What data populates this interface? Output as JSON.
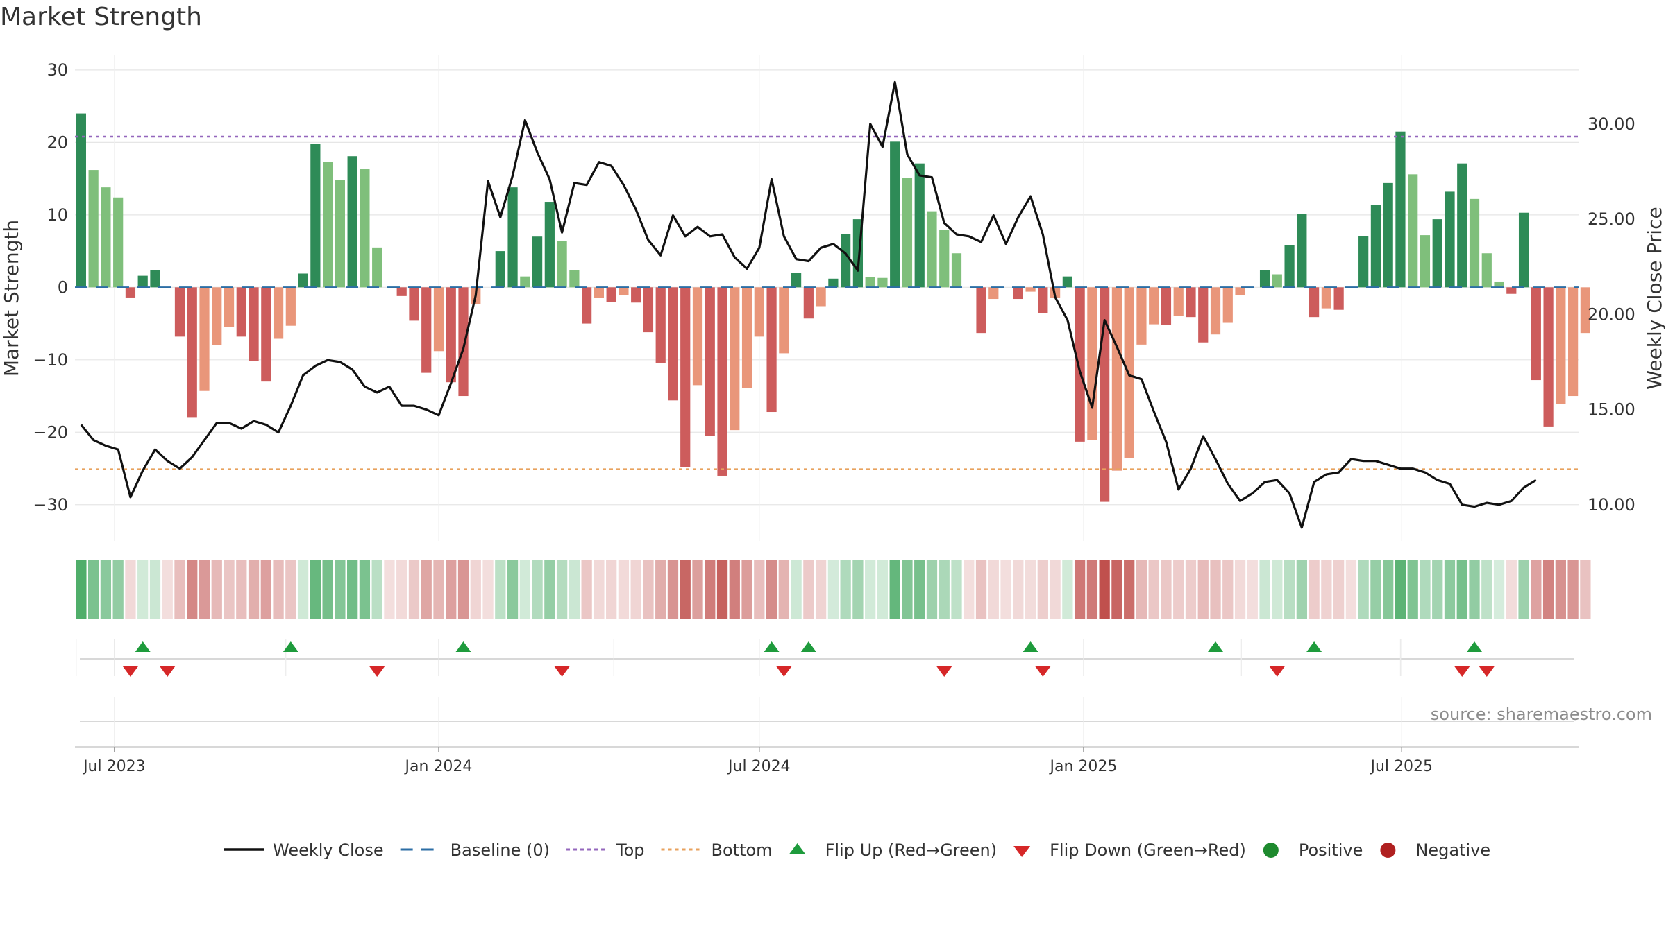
{
  "chart_data": {
    "type": "bar+line",
    "title": "Market Strength",
    "ylabel_left": "Market Strength",
    "ylabel_right": "Weekly Close Price",
    "yticks_left": [
      30,
      20,
      10,
      0,
      -10,
      -20,
      -30
    ],
    "yticks_left_labels": [
      "30",
      "20",
      "10",
      "0",
      "−10",
      "−20",
      "−30"
    ],
    "ylim_left": [
      -35,
      32
    ],
    "yticks_right": [
      30,
      25,
      20,
      15,
      10
    ],
    "yticks_right_labels": [
      "30.00",
      "25.00",
      "20.00",
      "15.00",
      "10.00"
    ],
    "ylim_right": [
      8.1,
      33.6
    ],
    "top_level": 20.8,
    "bottom_level": -25.1,
    "x_start": "2023-06-12",
    "x_step_days": 7,
    "x_range": [
      -0.5,
      121.5
    ],
    "x_ticks": [
      {
        "label": "Jul 2023",
        "index": 2.7
      },
      {
        "label": "Jan 2024",
        "index": 29
      },
      {
        "label": "Jul 2024",
        "index": 55
      },
      {
        "label": "Jan 2025",
        "index": 81.3
      },
      {
        "label": "Jul 2025",
        "index": 107.1
      }
    ],
    "strength": [
      24,
      16.2,
      13.8,
      12.4,
      -1.4,
      1.6,
      2.4,
      -0.3,
      -6.8,
      -18,
      -14.3,
      -8,
      -5.5,
      -6.8,
      -10.2,
      -13,
      -7.1,
      -5.3,
      1.9,
      19.8,
      17.3,
      14.8,
      18.1,
      16.3,
      5.5,
      -0.3,
      -1.2,
      -4.6,
      -11.8,
      -8.8,
      -13.1,
      -15,
      -2.3,
      -0.2,
      5,
      13.8,
      1.5,
      7,
      11.8,
      6.4,
      2.4,
      -5,
      -1.5,
      -2,
      -1.1,
      -2.1,
      -6.2,
      -10.4,
      -15.6,
      -24.8,
      -13.5,
      -20.5,
      -26,
      -19.7,
      -13.9,
      -6.8,
      -17.2,
      -9.1,
      2,
      -4.3,
      -2.6,
      1.2,
      7.4,
      9.4,
      1.4,
      1.3,
      20.1,
      15.1,
      17.1,
      10.5,
      7.9,
      4.7,
      -0.3,
      -6.3,
      -1.6,
      -0.4,
      -1.6,
      -0.6,
      -3.6,
      -1.4,
      1.5,
      -21.3,
      -21.1,
      -29.6,
      -25.3,
      -23.6,
      -7.9,
      -5.1,
      -5.2,
      -3.9,
      -4.1,
      -7.6,
      -6.5,
      -4.9,
      -1.1,
      -0.3,
      2.4,
      1.8,
      5.8,
      10.1,
      -4.1,
      -2.9,
      -3.1,
      -0.3,
      7.1,
      11.4,
      14.4,
      21.5,
      15.6,
      7.2,
      9.4,
      13.2,
      17.1,
      12.2,
      4.7,
      0.8,
      -0.9,
      10.3,
      -12.8,
      -19.2,
      -16.1,
      -15,
      -6.3
    ],
    "weekly_close": [
      14.2,
      13.4,
      13.1,
      12.9,
      10.4,
      11.8,
      12.9,
      12.3,
      11.9,
      12.5,
      13.4,
      14.3,
      14.3,
      14.0,
      14.4,
      14.2,
      13.8,
      15.2,
      16.8,
      17.3,
      17.6,
      17.5,
      17.1,
      16.2,
      15.9,
      16.2,
      15.2,
      15.2,
      15.0,
      14.7,
      16.4,
      18.2,
      21.0,
      27.0,
      25.1,
      27.3,
      30.2,
      28.5,
      27.1,
      24.3,
      26.9,
      26.8,
      28.0,
      27.8,
      26.8,
      25.5,
      23.9,
      23.1,
      25.2,
      24.1,
      24.6,
      24.1,
      24.2,
      23.0,
      22.4,
      23.5,
      27.1,
      24.1,
      22.9,
      22.8,
      23.5,
      23.7,
      23.2,
      22.3,
      30.0,
      28.8,
      32.2,
      28.4,
      27.3,
      27.2,
      24.8,
      24.2,
      24.1,
      23.8,
      25.2,
      23.7,
      25.1,
      26.2,
      24.2,
      20.9,
      19.7,
      17.0,
      15.1,
      19.7,
      18.3,
      16.8,
      16.6,
      14.9,
      13.3,
      10.8,
      11.9,
      13.6,
      12.4,
      11.1,
      10.2,
      10.6,
      11.2,
      11.3,
      10.6,
      8.8,
      11.2,
      11.6,
      11.7,
      12.4,
      12.3,
      12.3,
      12.1,
      11.9,
      11.9,
      11.7,
      11.3,
      11.1,
      10.0,
      9.9,
      10.1,
      10.0,
      10.2,
      10.9,
      11.3
    ],
    "flip_up_indices": [
      5,
      17,
      31,
      56,
      59,
      77,
      92,
      100,
      113
    ],
    "flip_down_indices": [
      4,
      7,
      24,
      39,
      57,
      70,
      78,
      97,
      112,
      114
    ],
    "source_text": "source: sharemaestro.com",
    "legend": [
      {
        "label": "Weekly Close",
        "kind": "line-solid",
        "color": "#111111"
      },
      {
        "label": "Baseline (0)",
        "kind": "line-dash",
        "color": "#2c6ea5"
      },
      {
        "label": "Top",
        "kind": "line-dot",
        "color": "#9467bd"
      },
      {
        "label": "Bottom",
        "kind": "line-dot",
        "color": "#e8a15c"
      },
      {
        "label": "Flip Up (Red→Green)",
        "kind": "tri-up",
        "color": "#1e9b3c"
      },
      {
        "label": "Flip Down (Green→Red)",
        "kind": "tri-down",
        "color": "#d62728"
      },
      {
        "label": "Positive",
        "kind": "dot",
        "color": "#1e8a2e"
      },
      {
        "label": "Negative",
        "kind": "dot",
        "color": "#b02020"
      }
    ],
    "colors": {
      "pos_strong": "#2e8b57",
      "pos_weak": "#7fbf7b",
      "neg_strong": "#cd5c5c",
      "neg_weak": "#e9967a",
      "price_line": "#111111",
      "baseline": "#2c6ea5",
      "top": "#9467bd",
      "bottom": "#e8a15c",
      "heat_pos": "#2e9e4e",
      "heat_neg": "#c0504d",
      "grid": "#e6e6e6"
    }
  }
}
